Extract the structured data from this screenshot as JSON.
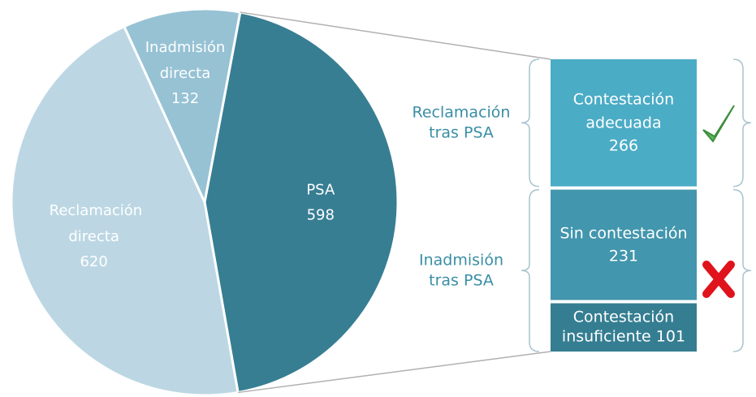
{
  "chart_data": {
    "type": "pie",
    "categories": [
      "PSA",
      "Reclamación directa",
      "Inadmisión directa"
    ],
    "values": [
      598,
      620,
      132
    ],
    "colors": [
      "#377e93",
      "#bcd7e3",
      "#96c2d4"
    ],
    "breakdown": {
      "categories": [
        "Contestación adecuada",
        "Sin contestación",
        "Contestación insuficiente"
      ],
      "values": [
        266,
        231,
        101
      ],
      "colors": [
        "#4bacc6",
        "#4296ad",
        "#357e92"
      ]
    },
    "groups": [
      "Reclamación tras PSA",
      "Inadmisión tras PSA"
    ]
  }
}
